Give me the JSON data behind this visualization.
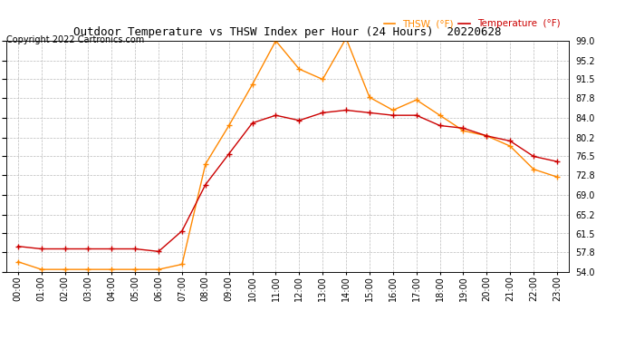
{
  "title": "Outdoor Temperature vs THSW Index per Hour (24 Hours)  20220628",
  "copyright": "Copyright 2022 Cartronics.com",
  "hours": [
    "00:00",
    "01:00",
    "02:00",
    "03:00",
    "04:00",
    "05:00",
    "06:00",
    "07:00",
    "08:00",
    "09:00",
    "10:00",
    "11:00",
    "12:00",
    "13:00",
    "14:00",
    "15:00",
    "16:00",
    "17:00",
    "18:00",
    "19:00",
    "20:00",
    "21:00",
    "22:00",
    "23:00"
  ],
  "temperature": [
    59.0,
    58.5,
    58.5,
    58.5,
    58.5,
    58.5,
    58.0,
    62.0,
    71.0,
    77.0,
    83.0,
    84.5,
    83.5,
    85.0,
    85.5,
    85.0,
    84.5,
    84.5,
    82.5,
    82.0,
    80.5,
    79.5,
    76.5,
    75.5
  ],
  "thsw": [
    56.0,
    54.5,
    54.5,
    54.5,
    54.5,
    54.5,
    54.5,
    55.5,
    75.0,
    82.5,
    90.5,
    99.0,
    93.5,
    91.5,
    99.5,
    88.0,
    85.5,
    87.5,
    84.5,
    81.5,
    80.5,
    78.5,
    74.0,
    72.5
  ],
  "temp_color": "#cc0000",
  "thsw_color": "#ff8800",
  "legend_thsw": "THSW  (°F)",
  "legend_temp": "Temperature  (°F)",
  "ylim": [
    54.0,
    99.0
  ],
  "yticks": [
    54.0,
    57.8,
    61.5,
    65.2,
    69.0,
    72.8,
    76.5,
    80.2,
    84.0,
    87.8,
    91.5,
    95.2,
    99.0
  ],
  "background_color": "#ffffff",
  "grid_color": "#bbbbbb",
  "title_fontsize": 9,
  "copyright_fontsize": 7,
  "legend_fontsize": 7.5,
  "tick_fontsize": 7
}
